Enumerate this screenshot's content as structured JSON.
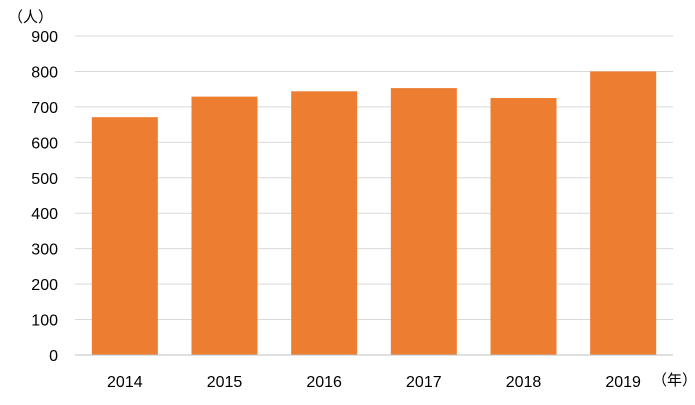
{
  "chart_data": {
    "type": "bar",
    "categories": [
      "2014",
      "2015",
      "2016",
      "2017",
      "2018",
      "2019"
    ],
    "values": [
      671,
      729,
      744,
      753,
      725,
      800
    ],
    "title": "",
    "xlabel": "（年）",
    "ylabel": "（人）",
    "ylim": [
      0,
      900
    ],
    "yticks": [
      0,
      100,
      200,
      300,
      400,
      500,
      600,
      700,
      800,
      900
    ],
    "bar_color": "#ED7D31",
    "grid": true,
    "legend": "none"
  }
}
